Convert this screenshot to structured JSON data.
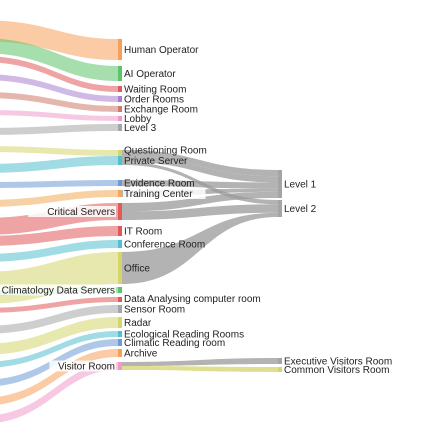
{
  "chart_data": {
    "type": "sankey",
    "nodes": [
      {
        "id": "human-operator",
        "label": "Human Operator",
        "color": "#f5a05a"
      },
      {
        "id": "ai-operator",
        "label": "AI Operator",
        "color": "#5cc46a"
      },
      {
        "id": "waiting-room",
        "label": "Waiting Room",
        "color": "#e05a5a"
      },
      {
        "id": "order-rooms",
        "label": "Order Rooms",
        "color": "#a77fd0"
      },
      {
        "id": "exchange-room",
        "label": "Exchange Room",
        "color": "#d07a6a"
      },
      {
        "id": "lobby",
        "label": "Lobby",
        "color": "#f19ac9"
      },
      {
        "id": "level-3",
        "label": "Level 3",
        "color": "#a5a5a5"
      },
      {
        "id": "questioning-room",
        "label": "Questioning Room",
        "color": "#d4d66a"
      },
      {
        "id": "private-server",
        "label": "Private Server",
        "color": "#54c0cf"
      },
      {
        "id": "evidence-room",
        "label": "Evidence Room",
        "color": "#6e9ad6"
      },
      {
        "id": "training-center",
        "label": "Training Center",
        "color": "#f0a95a"
      },
      {
        "id": "critical-servers",
        "label": "Critical Servers",
        "color": "#e05a5a"
      },
      {
        "id": "it-room",
        "label": "IT Room",
        "color": "#e05a5a"
      },
      {
        "id": "conference-room",
        "label": "Conference Room",
        "color": "#54c0cf"
      },
      {
        "id": "office",
        "label": "Office",
        "color": "#d4d66a"
      },
      {
        "id": "climatology-data-servers",
        "label": "Climatology Data Servers",
        "color": "#5cc46a"
      },
      {
        "id": "data-analysing-computer-room",
        "label": "Data Analysing computer room",
        "color": "#e05a5a"
      },
      {
        "id": "sensor-room",
        "label": "Sensor Room",
        "color": "#a5a5a5"
      },
      {
        "id": "radar",
        "label": "Radar",
        "color": "#d4d66a"
      },
      {
        "id": "ecological-reading-rooms",
        "label": "Ecological Reading Rooms",
        "color": "#54c0cf"
      },
      {
        "id": "climatic-reading-room",
        "label": "Climatic Reading room",
        "color": "#6e9ad6"
      },
      {
        "id": "archive",
        "label": "Archive",
        "color": "#f5a05a"
      },
      {
        "id": "visitor-room",
        "label": "Visitor Room",
        "color": "#f19ac9"
      },
      {
        "id": "level-1",
        "label": "Level 1",
        "color": "#a5a5a5"
      },
      {
        "id": "level-2",
        "label": "Level 2",
        "color": "#a5a5a5"
      },
      {
        "id": "executive-visitors-room",
        "label": "Executive Visitors Room",
        "color": "#a5a5a5"
      },
      {
        "id": "common-visitors-room",
        "label": "Common Visitors Room",
        "color": "#d4d66a"
      }
    ],
    "links": [
      {
        "source": "questioning-room",
        "target": "level-1",
        "value": 2
      },
      {
        "source": "private-server",
        "target": "level-1",
        "value": 2
      },
      {
        "source": "evidence-room",
        "target": "level-1",
        "value": 2
      },
      {
        "source": "training-center",
        "target": "level-1",
        "value": 1
      },
      {
        "source": "critical-servers",
        "target": "level-1",
        "value": 2
      },
      {
        "source": "private-server",
        "target": "level-2",
        "value": 1
      },
      {
        "source": "critical-servers",
        "target": "level-2",
        "value": 2
      },
      {
        "source": "office",
        "target": "level-2",
        "value": 1
      },
      {
        "source": "visitor-room",
        "target": "executive-visitors-room",
        "value": 1
      },
      {
        "source": "visitor-room",
        "target": "common-visitors-room",
        "value": 1
      }
    ]
  }
}
